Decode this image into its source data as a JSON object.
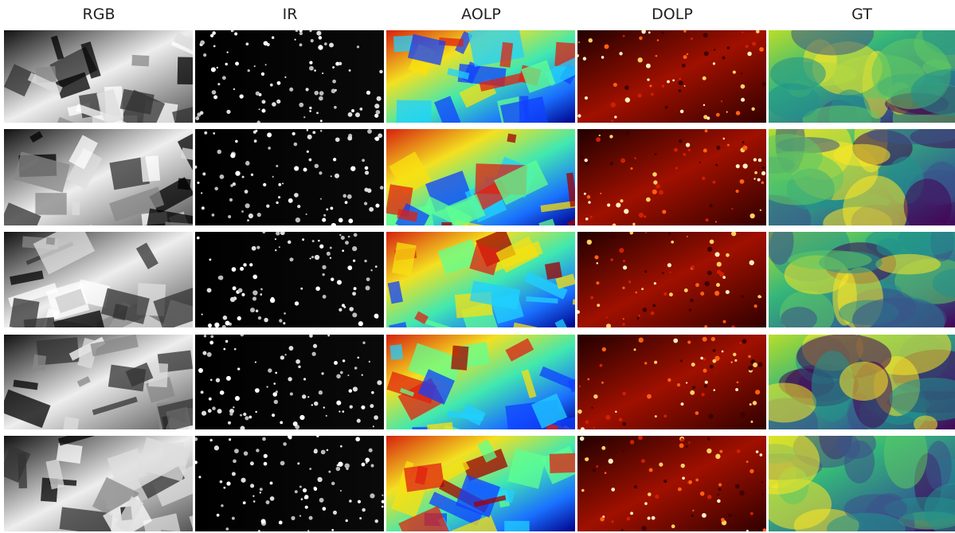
{
  "columns": [
    "RGB",
    "IR",
    "AOLP",
    "DOLP",
    "GT"
  ]
}
